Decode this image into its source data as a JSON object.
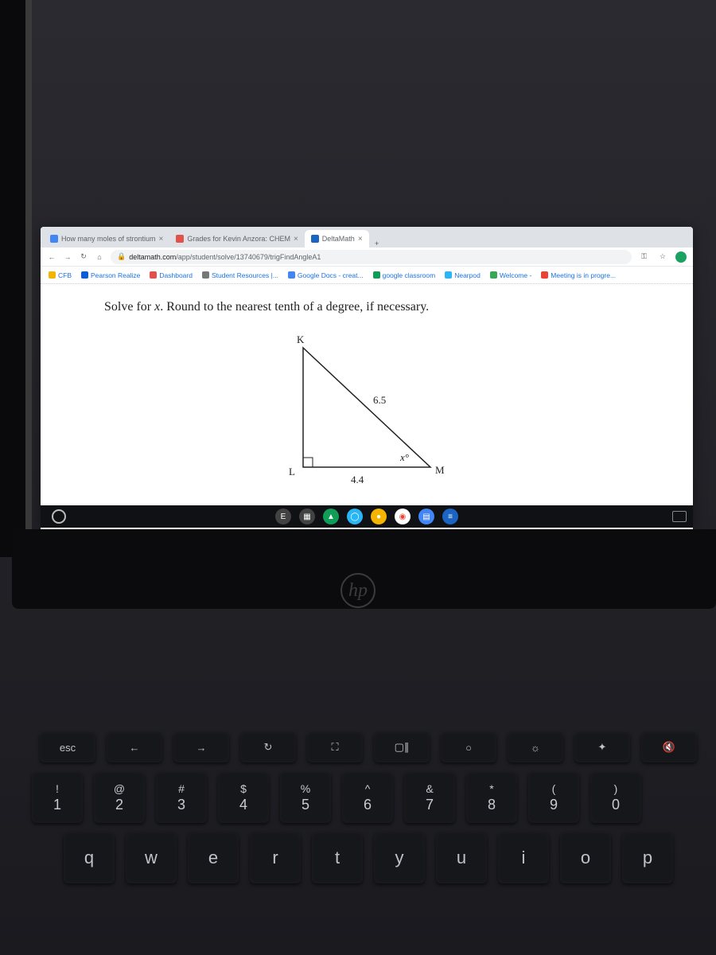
{
  "browser": {
    "tabs": [
      {
        "title": "How many moles of strontium",
        "favicon_color": "#4285f4",
        "active": false
      },
      {
        "title": "Grades for Kevin Anzora: CHEM",
        "favicon_color": "#e2514a",
        "active": false
      },
      {
        "title": "DeltaMath",
        "favicon_color": "#1b64c4",
        "active": true
      }
    ],
    "new_tab_label": "+",
    "tab_close_label": "×",
    "url_host": "deltamath.com",
    "url_path": "/app/student/solve/13740679/trigFindAngleA1",
    "bookmarks": [
      {
        "label": "CFB",
        "favicon_color": "#f4b400"
      },
      {
        "label": "Pearson Realize",
        "favicon_color": "#0b5ed7"
      },
      {
        "label": "Dashboard",
        "favicon_color": "#e2514a"
      },
      {
        "label": "Student Resources |...",
        "favicon_color": "#777777"
      },
      {
        "label": "Google Docs - creat...",
        "favicon_color": "#4285f4"
      },
      {
        "label": "google classroom",
        "favicon_color": "#0f9d58"
      },
      {
        "label": "Nearpod",
        "favicon_color": "#29b6f6"
      },
      {
        "label": "Welcome -",
        "favicon_color": "#34a853"
      },
      {
        "label": "Meeting is in progre...",
        "favicon_color": "#ea4335"
      }
    ]
  },
  "problem": {
    "prompt_prefix": "Solve for ",
    "variable": "x",
    "prompt_suffix": ". Round to the nearest tenth of a degree, if necessary."
  },
  "triangle": {
    "vertices": {
      "top": "K",
      "bottom_left": "L",
      "bottom_right": "M"
    },
    "hypotenuse_label": "6.5",
    "base_label": "4.4",
    "angle_label": "x°",
    "stroke_color": "#222222",
    "stroke_width": 1.5,
    "background_color": "#ffffff"
  },
  "shelf": {
    "apps": [
      {
        "color": "#424242",
        "glyph": "E"
      },
      {
        "color": "#424242",
        "glyph": "▦"
      },
      {
        "color": "#0f9d58",
        "glyph": "▲"
      },
      {
        "color": "#29b6f6",
        "glyph": "◯"
      },
      {
        "color": "#f4b400",
        "glyph": "●"
      },
      {
        "color": "#ffffff",
        "glyph": "◉"
      },
      {
        "color": "#4285f4",
        "glyph": "▤"
      },
      {
        "color": "#1b64c4",
        "glyph": "≡"
      }
    ]
  },
  "keyboard": {
    "fn_row": [
      "esc",
      "←",
      "→",
      "↻",
      "⛶",
      "▢∥",
      "○",
      "☼",
      "✦",
      "🔇"
    ],
    "num_row": [
      {
        "upper": "!",
        "lower": "1"
      },
      {
        "upper": "@",
        "lower": "2"
      },
      {
        "upper": "#",
        "lower": "3"
      },
      {
        "upper": "$",
        "lower": "4"
      },
      {
        "upper": "%",
        "lower": "5"
      },
      {
        "upper": "^",
        "lower": "6"
      },
      {
        "upper": "&",
        "lower": "7"
      },
      {
        "upper": "*",
        "lower": "8"
      },
      {
        "upper": "(",
        "lower": "9"
      },
      {
        "upper": ")",
        "lower": "0"
      }
    ],
    "letter_row": [
      "q",
      "w",
      "e",
      "r",
      "t",
      "y",
      "u",
      "i",
      "o",
      "p"
    ]
  },
  "hp_label": "hp"
}
